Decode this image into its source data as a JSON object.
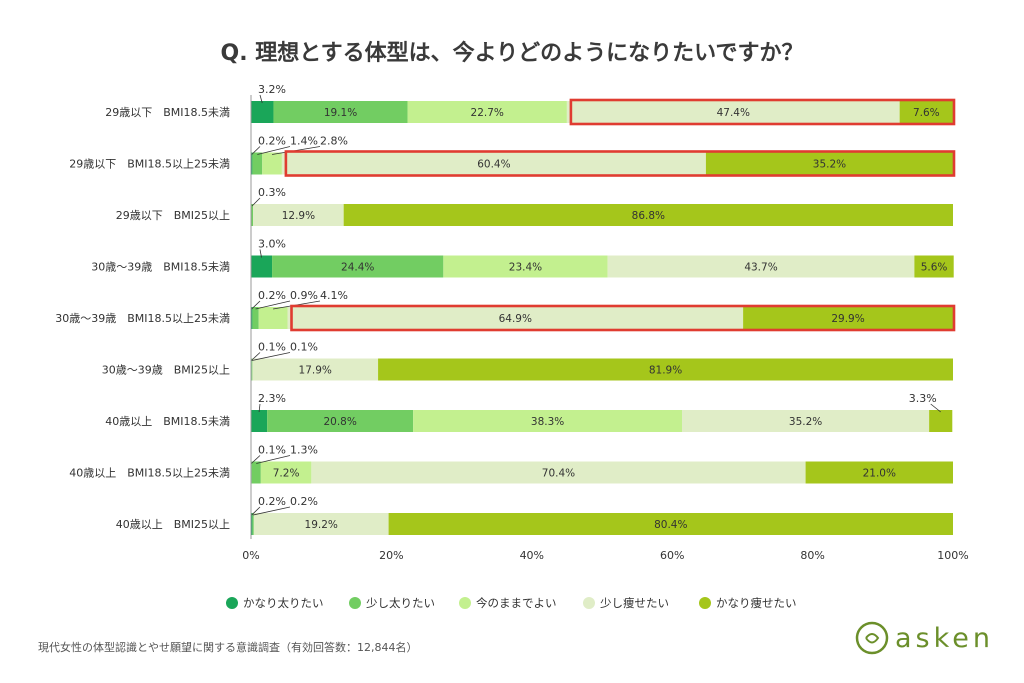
{
  "chart_data": {
    "type": "bar",
    "orientation": "horizontal-stacked-100",
    "title": "Q. 理想とする体型は、今よりどのようになりたいですか？",
    "categories": [
      "29歳以下　BMI18.5未満",
      "29歳以下　BMI18.5以上25未満",
      "29歳以下　BMI25以上",
      "30歳〜39歳　BMI18.5未満",
      "30歳〜39歳　BMI18.5以上25未満",
      "30歳〜39歳　BMI25以上",
      "40歳以上　BMI18.5未満",
      "40歳以上　BMI18.5以上25未満",
      "40歳以上　BMI25以上"
    ],
    "series": [
      {
        "name": "かなり太りたい",
        "color": "#1aa659",
        "values": [
          3.2,
          0.2,
          0.0,
          3.0,
          0.2,
          0.1,
          2.3,
          0.1,
          0.2
        ]
      },
      {
        "name": "少し太りたい",
        "color": "#72cd62",
        "values": [
          19.1,
          1.4,
          0.3,
          24.4,
          0.9,
          0.1,
          20.8,
          1.3,
          0.2
        ]
      },
      {
        "name": "今のままでよい",
        "color": "#c3f08f",
        "values": [
          22.7,
          2.8,
          0.0,
          23.4,
          4.1,
          0.0,
          38.3,
          7.2,
          0.0
        ]
      },
      {
        "name": "少し痩せたい",
        "color": "#e0edc7",
        "values": [
          47.4,
          60.4,
          12.9,
          43.7,
          64.9,
          17.9,
          35.2,
          70.4,
          19.2
        ]
      },
      {
        "name": "かなり痩せたい",
        "color": "#a5c61b",
        "values": [
          7.6,
          35.2,
          86.8,
          5.6,
          29.9,
          81.9,
          3.3,
          21.0,
          80.4
        ]
      }
    ],
    "value_labels": [
      [
        "3.2%",
        "19.1%",
        "22.7%",
        "47.4%",
        "7.6%"
      ],
      [
        "0.2%",
        "1.4%",
        "2.8%",
        "60.4%",
        "35.2%"
      ],
      [
        "",
        "0.3%",
        "",
        "12.9%",
        "86.8%"
      ],
      [
        "3.0%",
        "24.4%",
        "23.4%",
        "43.7%",
        "5.6%"
      ],
      [
        "0.2%",
        "0.9%",
        "4.1%",
        "64.9%",
        "29.9%"
      ],
      [
        "0.1%",
        "0.1%",
        "",
        "17.9%",
        "81.9%"
      ],
      [
        "2.3%",
        "20.8%",
        "38.3%",
        "35.2%",
        "3.3%"
      ],
      [
        "0.1%",
        "1.3%",
        "7.2%",
        "70.4%",
        "21.0%"
      ],
      [
        "0.2%",
        "0.2%",
        "",
        "19.2%",
        "80.4%"
      ]
    ],
    "xlim": [
      0,
      100
    ],
    "xticks": [
      "0%",
      "20%",
      "40%",
      "60%",
      "80%",
      "100%"
    ],
    "highlighted_rows": [
      0,
      1,
      4
    ],
    "highlight_color": "#e03c31",
    "grid": false,
    "legend_position": "bottom"
  },
  "footer": {
    "source": "現代女性の体型認識とやせ願望に関する意識調査（有効回答数：12,844名）",
    "logo_text": "asken",
    "logo_color": "#6b8f2a"
  }
}
